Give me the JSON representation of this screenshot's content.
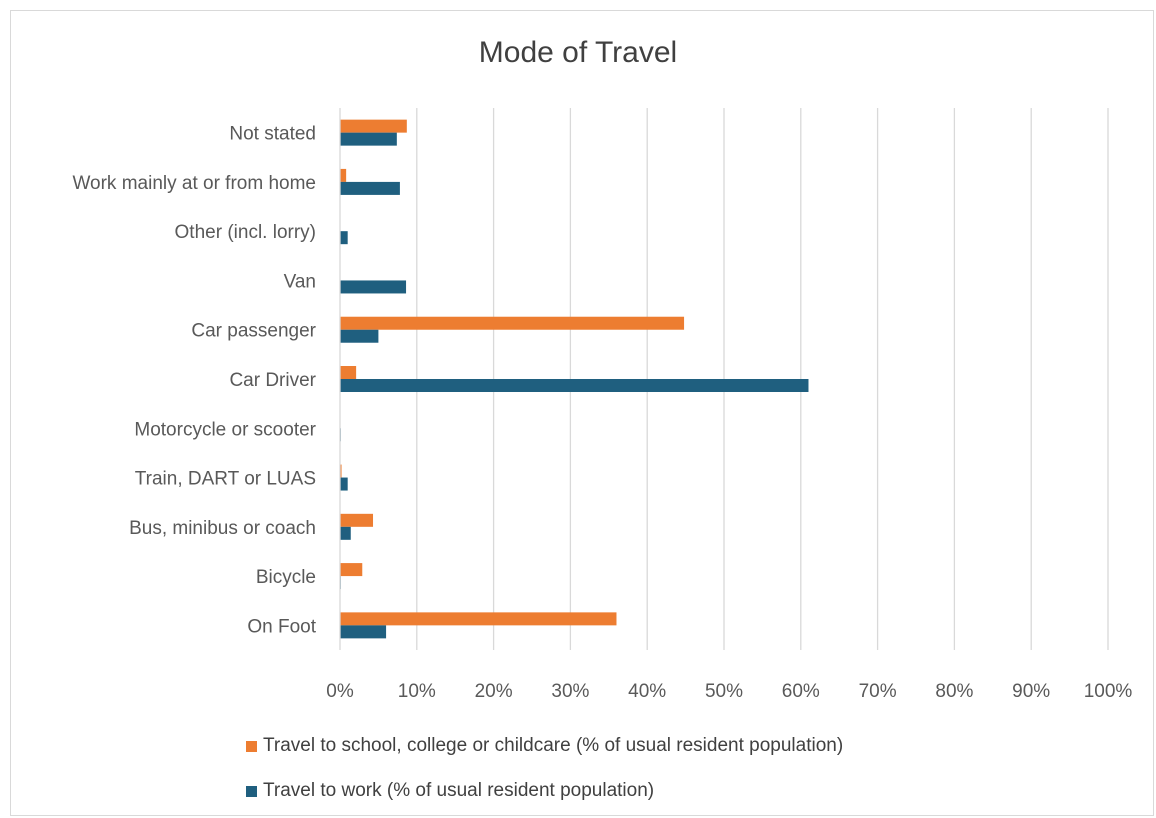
{
  "chart_data": {
    "type": "bar",
    "orientation": "horizontal",
    "title": "Mode of Travel",
    "categories": [
      "Not stated",
      "Work mainly at or from home",
      "Other (incl. lorry)",
      "Van",
      "Car passenger",
      "Car Driver",
      "Motorcycle or scooter",
      "Train, DART or LUAS",
      "Bus, minibus or coach",
      "Bicycle",
      "On Foot"
    ],
    "series": [
      {
        "name": "Travel to school, college or childcare (% of usual resident population)",
        "color": "#ED7D31",
        "values": [
          8.7,
          0.8,
          0.0,
          0.0,
          44.8,
          2.1,
          0.0,
          0.2,
          4.3,
          2.9,
          36.0
        ]
      },
      {
        "name": "Travel to work (% of usual resident population)",
        "color": "#1F5F7F",
        "values": [
          7.4,
          7.8,
          1.0,
          8.6,
          5.0,
          61.0,
          0.1,
          1.0,
          1.4,
          0.1,
          6.0
        ]
      }
    ],
    "xlim": [
      0,
      100
    ],
    "xticks": [
      "0%",
      "10%",
      "20%",
      "30%",
      "40%",
      "50%",
      "60%",
      "70%",
      "80%",
      "90%",
      "100%"
    ],
    "grid": true,
    "legend_position": "bottom"
  }
}
